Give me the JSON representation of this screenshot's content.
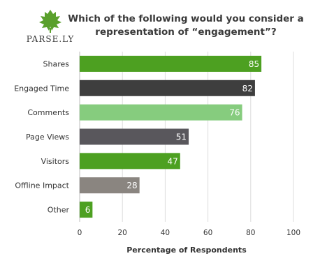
{
  "logo": {
    "text": "PARSE.LY",
    "color": "#5aa02c",
    "icon": "parsley-leaf-icon"
  },
  "chart_data": {
    "type": "bar",
    "orientation": "horizontal",
    "title": "Which of the following would you consider a representation of “engagement”?",
    "title_lines": [
      "Which of the following would you consider a",
      "representation of “engagement”?"
    ],
    "categories": [
      "Shares",
      "Engaged Time",
      "Comments",
      "Page Views",
      "Visitors",
      "Offline Impact",
      "Other"
    ],
    "values": [
      85,
      82,
      76,
      51,
      47,
      28,
      6
    ],
    "colors": [
      "#4da021",
      "#3e3e3e",
      "#86cc7e",
      "#59575c",
      "#4da021",
      "#8a8580",
      "#4da021"
    ],
    "xlabel": "Percentage of Respondents",
    "ylabel": "",
    "xlim": [
      0,
      100
    ],
    "xticks": [
      0,
      20,
      40,
      60,
      80,
      100
    ],
    "grid": true,
    "legend": "none"
  }
}
